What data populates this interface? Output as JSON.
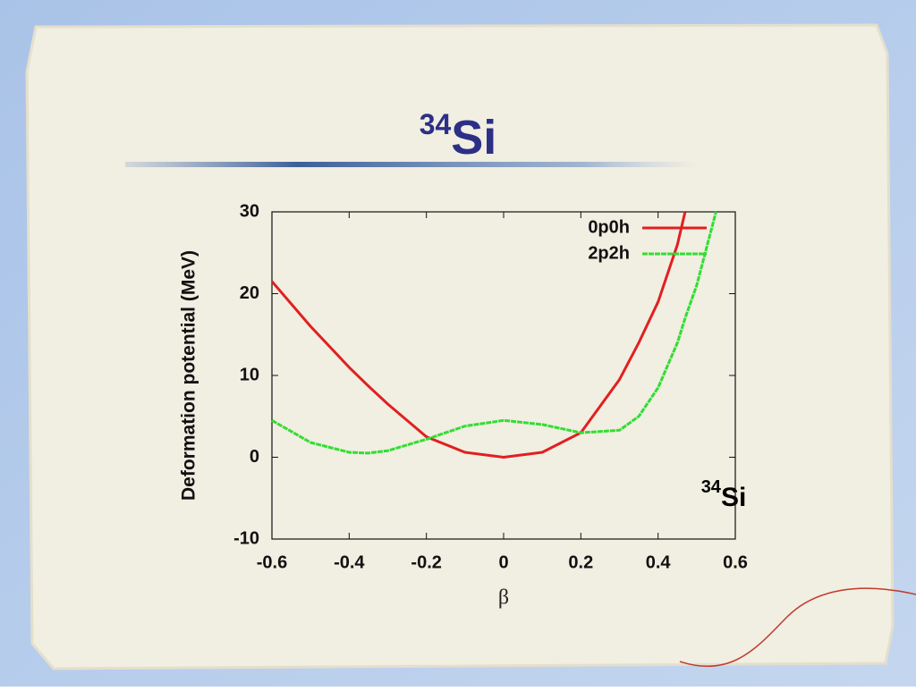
{
  "chart_data": {
    "type": "line",
    "title": {
      "sup": "34",
      "text": "Si"
    },
    "annotation": {
      "sup": "34",
      "text": "Si"
    },
    "xlabel": "β",
    "ylabel": "Deformation potential (MeV)",
    "x": [
      -0.6,
      -0.5,
      -0.4,
      -0.35,
      -0.3,
      -0.2,
      -0.1,
      0,
      0.1,
      0.2,
      0.3,
      0.35,
      0.4,
      0.45,
      0.47,
      0.5,
      0.55
    ],
    "series": [
      {
        "name": "0p0h",
        "color": "#e02020",
        "values": [
          21.5,
          16,
          11,
          8.7,
          6.5,
          2.5,
          0.6,
          0,
          0.6,
          3,
          9.5,
          14,
          19,
          26,
          30,
          null,
          null
        ]
      },
      {
        "name": "2p2h",
        "color": "#33dd33",
        "values": [
          4.5,
          1.8,
          0.6,
          0.5,
          0.8,
          2.2,
          3.8,
          4.5,
          4,
          3,
          3.3,
          5,
          8.5,
          14,
          17,
          21,
          30
        ]
      }
    ],
    "xlim": [
      -0.6,
      0.6
    ],
    "xticks": [
      -0.6,
      -0.4,
      -0.2,
      0,
      0.2,
      0.4,
      0.6
    ],
    "ylim": [
      -10,
      30
    ],
    "yticks": [
      -10,
      0,
      10,
      20,
      30
    ],
    "legend": "top-right"
  }
}
